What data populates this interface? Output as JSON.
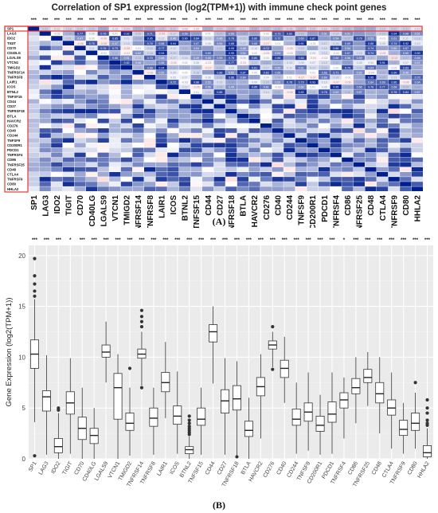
{
  "figure": {
    "panel_a_label": "(A)",
    "panel_b_label": "(B)"
  },
  "chart_data": [
    {
      "type": "heatmap",
      "title": "Correlation of SP1 expression (log2(TPM+1)) with immune check point genes",
      "genes": [
        "SP1",
        "LAG3",
        "IDO2",
        "TIGIT",
        "CD70",
        "CD40LG",
        "LGALS9",
        "VTCN1",
        "TMIGD2",
        "TNFRSF14",
        "TNFRSF8",
        "LAIR1",
        "ICOS",
        "BTNL2",
        "TNFSF15",
        "CD44",
        "CD27",
        "TNFRSF18",
        "BTLA",
        "HAVCR2",
        "CD276",
        "CD40",
        "CD244",
        "TNFSF9",
        "CD200R1",
        "PDCD1",
        "TNFRSF4",
        "CD86",
        "TNFRSF25",
        "CD48",
        "CTLA4",
        "TNFRSF9",
        "CD80",
        "HHLA2"
      ],
      "significance": [
        "***",
        "***",
        "***",
        "***",
        "***",
        "***",
        "***",
        "***",
        "***",
        "***",
        "***",
        "***",
        "***",
        "***",
        "*",
        "***",
        "***",
        "***",
        "***",
        "***",
        "***",
        "***",
        "***",
        "***",
        "***",
        "***",
        "***",
        "***",
        "***",
        "***",
        "***",
        "***",
        "***",
        "***"
      ],
      "sp1_row_values": [
        1.0,
        0.21,
        0.12,
        0.18,
        0.2,
        0.22,
        0.36,
        0.1,
        0.15,
        0.31,
        0.33,
        0.24,
        0.21,
        0.08,
        0.05,
        0.33,
        0.2,
        0.25,
        0.17,
        0.3,
        0.27,
        0.26,
        0.18,
        0.27,
        0.2,
        0.16,
        0.22,
        0.28,
        0.35,
        0.36,
        0.19,
        0.22,
        0.21,
        0.1
      ],
      "highlight": "SP1 row and column"
    },
    {
      "type": "box",
      "ylabel": "Gene Expression (log2(TPM+1))",
      "ylim": [
        0,
        21
      ],
      "yticks": [
        0,
        5,
        10,
        15,
        20
      ],
      "categories": [
        "SP1",
        "LAG3",
        "IDO2",
        "TIGIT",
        "CD70",
        "CD40LG",
        "LGALS9",
        "VTCN1",
        "TMIGD2",
        "TNFRSF14",
        "TNFRSF8",
        "LAIR1",
        "ICOS",
        "BTNL2",
        "TNFSF15",
        "CD44",
        "CD27",
        "TNFRSF18",
        "BTLA",
        "HAVCR2",
        "CD276",
        "CD40",
        "CD244",
        "TNFSF9",
        "CD200R1",
        "PDCD1",
        "TNFRSF4",
        "CD86",
        "TNFRSF25",
        "CD48",
        "CTLA4",
        "TNFRSF9",
        "CD80",
        "HHLA2"
      ],
      "significance": [
        "***",
        "***",
        "***",
        "*",
        "***",
        "***",
        "***",
        "***",
        "***",
        "***",
        "***",
        "***",
        "***",
        "***",
        "***",
        "***",
        "***",
        "***",
        "***",
        "***",
        "***",
        "***",
        "***",
        "***",
        "***",
        "***",
        "*",
        "***",
        "***",
        "***",
        "***",
        "***",
        "***",
        "***"
      ],
      "boxes": [
        {
          "min": 3.6,
          "q1": 8.9,
          "median": 10.3,
          "q3": 11.7,
          "max": 15.7,
          "outliers": [
            0.3,
            16.0,
            16.5,
            17.2,
            18.0,
            19.7
          ]
        },
        {
          "min": 0.4,
          "q1": 4.7,
          "median": 6.1,
          "q3": 6.7,
          "max": 10.2,
          "outliers": []
        },
        {
          "min": 0.0,
          "q1": 0.6,
          "median": 1.2,
          "q3": 2.0,
          "max": 4.5,
          "outliers": [
            4.8,
            5.0
          ]
        },
        {
          "min": 0.5,
          "q1": 4.4,
          "median": 5.5,
          "q3": 6.6,
          "max": 9.9,
          "outliers": []
        },
        {
          "min": 0.0,
          "q1": 1.9,
          "median": 3.0,
          "q3": 4.1,
          "max": 7.0,
          "outliers": []
        },
        {
          "min": 0.0,
          "q1": 1.5,
          "median": 2.3,
          "q3": 3.0,
          "max": 5.0,
          "outliers": []
        },
        {
          "min": 7.5,
          "q1": 10.0,
          "median": 10.5,
          "q3": 11.2,
          "max": 13.5,
          "outliers": []
        },
        {
          "min": 0.0,
          "q1": 3.9,
          "median": 7.0,
          "q3": 8.4,
          "max": 10.3,
          "outliers": []
        },
        {
          "min": 0.3,
          "q1": 2.8,
          "median": 3.5,
          "q3": 4.5,
          "max": 7.0,
          "outliers": [
            8.9
          ]
        },
        {
          "min": 7.2,
          "q1": 9.9,
          "median": 10.3,
          "q3": 10.8,
          "max": 12.5,
          "outliers": [
            7.0,
            13.0,
            13.5,
            14.0,
            14.6
          ]
        },
        {
          "min": 0.4,
          "q1": 3.2,
          "median": 4.0,
          "q3": 5.0,
          "max": 7.0,
          "outliers": []
        },
        {
          "min": 4.0,
          "q1": 6.6,
          "median": 7.5,
          "q3": 8.5,
          "max": 11.5,
          "outliers": []
        },
        {
          "min": 0.5,
          "q1": 3.4,
          "median": 4.2,
          "q3": 5.2,
          "max": 8.6,
          "outliers": []
        },
        {
          "min": 0.0,
          "q1": 0.5,
          "median": 0.9,
          "q3": 1.2,
          "max": 2.2,
          "outliers": [
            2.4,
            2.6,
            2.8,
            3.0,
            3.2,
            3.5,
            3.8,
            4.2
          ]
        },
        {
          "min": 0.4,
          "q1": 3.3,
          "median": 3.9,
          "q3": 5.0,
          "max": 7.0,
          "outliers": []
        },
        {
          "min": 7.4,
          "q1": 11.5,
          "median": 12.5,
          "q3": 13.2,
          "max": 15.0,
          "outliers": []
        },
        {
          "min": 0.4,
          "q1": 4.5,
          "median": 5.7,
          "q3": 6.8,
          "max": 9.9,
          "outliers": []
        },
        {
          "min": 0.2,
          "q1": 4.8,
          "median": 5.9,
          "q3": 7.2,
          "max": 9.6,
          "outliers": [
            0.2
          ]
        },
        {
          "min": 0.0,
          "q1": 2.2,
          "median": 2.8,
          "q3": 3.7,
          "max": 6.0,
          "outliers": []
        },
        {
          "min": 2.0,
          "q1": 6.2,
          "median": 7.1,
          "q3": 8.0,
          "max": 10.3,
          "outliers": []
        },
        {
          "min": 9.0,
          "q1": 10.8,
          "median": 11.2,
          "q3": 11.6,
          "max": 12.5,
          "outliers": [
            8.8,
            13.0
          ]
        },
        {
          "min": 5.5,
          "q1": 8.0,
          "median": 8.9,
          "q3": 9.7,
          "max": 12.0,
          "outliers": []
        },
        {
          "min": 0.5,
          "q1": 3.3,
          "median": 3.9,
          "q3": 4.9,
          "max": 7.5,
          "outliers": []
        },
        {
          "min": 0.8,
          "q1": 3.7,
          "median": 4.6,
          "q3": 5.5,
          "max": 8.5,
          "outliers": []
        },
        {
          "min": 0.4,
          "q1": 2.7,
          "median": 3.3,
          "q3": 4.2,
          "max": 6.3,
          "outliers": []
        },
        {
          "min": 0.5,
          "q1": 3.6,
          "median": 4.4,
          "q3": 5.6,
          "max": 8.5,
          "outliers": []
        },
        {
          "min": 2.0,
          "q1": 5.0,
          "median": 5.8,
          "q3": 6.5,
          "max": 8.0,
          "outliers": []
        },
        {
          "min": 3.5,
          "q1": 6.4,
          "median": 7.0,
          "q3": 7.9,
          "max": 10.0,
          "outliers": []
        },
        {
          "min": 5.2,
          "q1": 7.5,
          "median": 8.0,
          "q3": 8.8,
          "max": 10.5,
          "outliers": []
        },
        {
          "min": 2.5,
          "q1": 5.5,
          "median": 6.4,
          "q3": 7.5,
          "max": 10.0,
          "outliers": []
        },
        {
          "min": 1.0,
          "q1": 4.3,
          "median": 5.0,
          "q3": 5.8,
          "max": 8.5,
          "outliers": []
        },
        {
          "min": 0.5,
          "q1": 2.3,
          "median": 2.9,
          "q3": 3.8,
          "max": 5.5,
          "outliers": []
        },
        {
          "min": 1.0,
          "q1": 2.8,
          "median": 3.5,
          "q3": 4.5,
          "max": 6.5,
          "outliers": [
            7.5
          ]
        },
        {
          "min": 0.0,
          "q1": 0.2,
          "median": 0.6,
          "q3": 1.3,
          "max": 3.0,
          "outliers": [
            3.3,
            3.5,
            3.8,
            4.5,
            5.0,
            5.8
          ]
        }
      ]
    }
  ]
}
